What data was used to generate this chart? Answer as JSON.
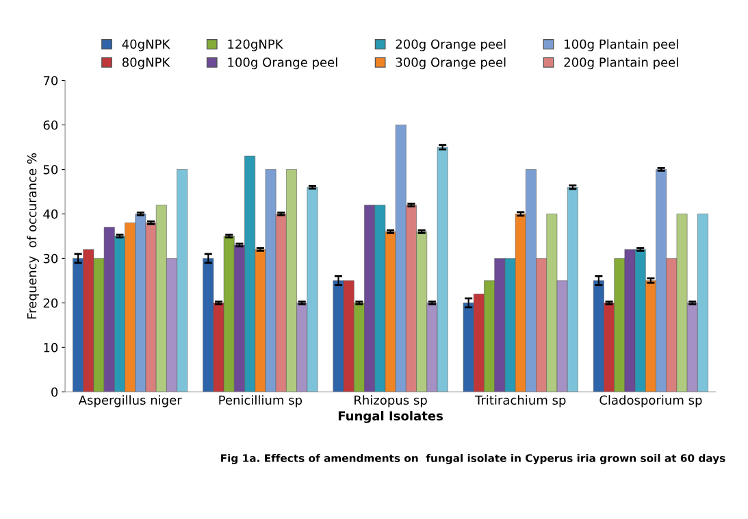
{
  "chart_data": {
    "type": "bar",
    "xlabel": "Fungal Isolates",
    "ylabel": "Frequency  of occurance %",
    "categories": [
      "Aspergillus niger",
      "Penicillium sp",
      "Rhizopus sp",
      "Tritirachium sp",
      "Cladosporium sp"
    ],
    "series": [
      {
        "name": "40gNPK",
        "color": "#2e64aa",
        "values": [
          30,
          30,
          25,
          20,
          25
        ],
        "errors": [
          1,
          1,
          1,
          1,
          1
        ]
      },
      {
        "name": "80gNPK",
        "color": "#c0373a",
        "values": [
          32,
          20,
          25,
          22,
          20
        ],
        "errors": [
          null,
          0.3,
          null,
          null,
          0.3
        ]
      },
      {
        "name": "120gNPK",
        "color": "#86ac38",
        "values": [
          30,
          35,
          20,
          25,
          30
        ],
        "errors": [
          null,
          0.3,
          0.3,
          null,
          null
        ]
      },
      {
        "name": "100g Orange peel",
        "color": "#6c4a96",
        "values": [
          37,
          33,
          42,
          30,
          32
        ],
        "errors": [
          null,
          0.3,
          null,
          null,
          null
        ]
      },
      {
        "name": "200g Orange peel",
        "color": "#2a9ab4",
        "values": [
          35,
          53,
          42,
          30,
          32
        ],
        "errors": [
          0.3,
          null,
          null,
          null,
          0.3
        ]
      },
      {
        "name": "300g Orange peel",
        "color": "#f08424",
        "values": [
          38,
          32,
          36,
          40,
          25
        ],
        "errors": [
          null,
          0.3,
          0.3,
          0.4,
          0.5
        ]
      },
      {
        "name": "100g Plantain peel",
        "color": "#7b9ed2",
        "values": [
          40,
          50,
          60,
          50,
          50
        ],
        "errors": [
          0.3,
          null,
          null,
          null,
          0.3
        ]
      },
      {
        "name": "200g Plantain peel",
        "color": "#d9807e",
        "values": [
          38,
          40,
          42,
          30,
          30
        ],
        "errors": [
          0.3,
          0.3,
          0.3,
          null,
          null
        ]
      },
      {
        "color": "#b0cb80",
        "values": [
          42,
          50,
          36,
          40,
          40
        ],
        "errors": [
          null,
          null,
          0.3,
          null,
          null
        ]
      },
      {
        "color": "#a591c4",
        "values": [
          30,
          20,
          20,
          25,
          20
        ],
        "errors": [
          null,
          0.3,
          0.3,
          null,
          0.3
        ]
      },
      {
        "color": "#7cc3da",
        "values": [
          50,
          46,
          55,
          46,
          40
        ],
        "errors": [
          null,
          0.3,
          0.5,
          0.4,
          null
        ]
      }
    ],
    "ylim": [
      0,
      70
    ],
    "yticks": [
      0,
      10,
      20,
      30,
      40,
      50,
      60,
      70
    ],
    "grid": false,
    "legend": "top",
    "annotations": [
      "Fig 1a. Effects of amendments on  fungal isolate in Cyperus iria grown soil at 60 days"
    ]
  }
}
